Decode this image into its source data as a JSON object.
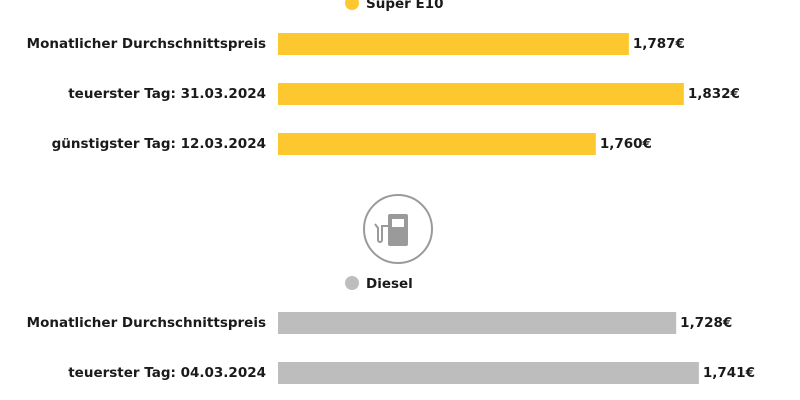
{
  "chart_data": [
    {
      "type": "bar",
      "categories": [
        "Monatlicher Durchschnittspreis",
        "teuerster Tag: 31.03.2024",
        "günstigster Tag: 12.03.2024"
      ],
      "series": [
        {
          "name": "Super E10",
          "color": "#fdc82f",
          "values": [
            1.787,
            1.832,
            1.76
          ],
          "value_labels": [
            "1,787€",
            "1,832€",
            "1,760€"
          ]
        }
      ],
      "xlim": [
        1.5,
        1.9
      ]
    },
    {
      "type": "bar",
      "categories": [
        "Monatlicher Durchschnittspreis",
        "teuerster Tag: 04.03.2024"
      ],
      "series": [
        {
          "name": "Diesel",
          "color": "#bdbdbd",
          "values": [
            1.728,
            1.741
          ],
          "value_labels": [
            "1,728€",
            "1,741€"
          ]
        }
      ],
      "xlim": [
        1.5,
        1.78
      ]
    }
  ]
}
